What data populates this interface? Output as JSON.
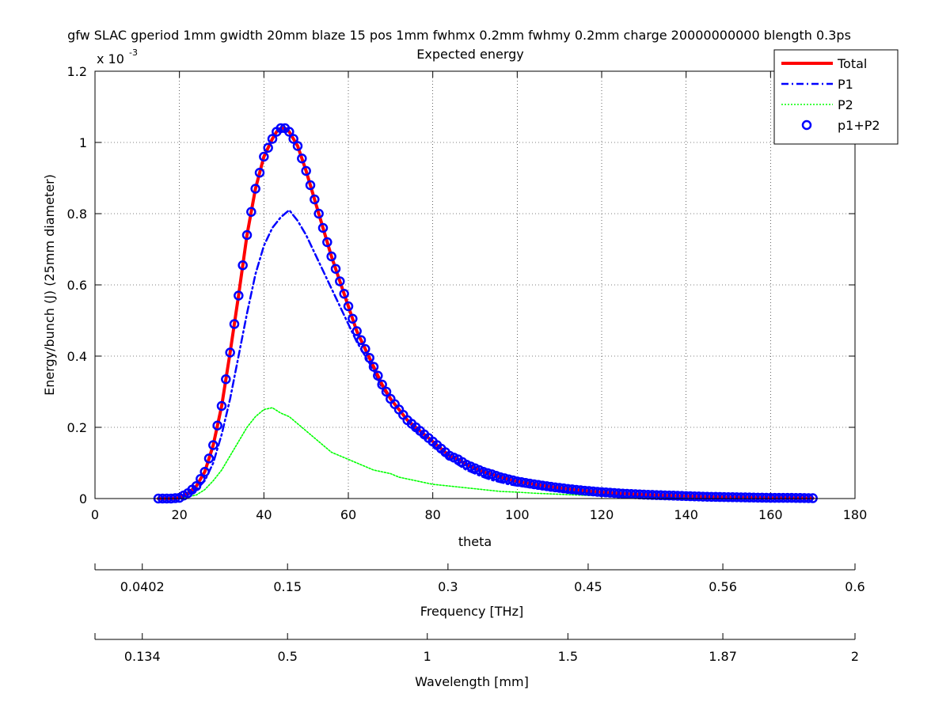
{
  "chart_data": {
    "type": "line",
    "title": "gfw SLAC gperiod 1mm gwidth 20mm blaze 15 pos 1mm fwhmx 0.2mm fwhmy 0.2mm charge 20000000000 blength 0.3ps",
    "subtitle": "Expected energy",
    "xlabel": "theta",
    "ylabel": "Energy/bunch (J) (25mm diameter)",
    "y_exponent_label": "x 10",
    "y_exponent_power": "-3",
    "xlim": [
      0,
      180
    ],
    "ylim": [
      0,
      0.0012
    ],
    "x_ticks": [
      "0",
      "20",
      "40",
      "60",
      "80",
      "100",
      "120",
      "140",
      "160",
      "180"
    ],
    "x_tick_values": [
      0,
      20,
      40,
      60,
      80,
      100,
      120,
      140,
      160,
      180
    ],
    "y_ticks": [
      "0",
      "0.2",
      "0.4",
      "0.6",
      "0.8",
      "1",
      "1.2"
    ],
    "y_tick_values": [
      0,
      0.0002,
      0.0004,
      0.0006,
      0.0008,
      0.001,
      0.0012
    ],
    "grid": true,
    "legend_position": "top-right",
    "series": [
      {
        "name": "Total",
        "style": "solid",
        "color": "#ff0000",
        "x": [
          15,
          18,
          20,
          22,
          24,
          26,
          28,
          30,
          32,
          34,
          36,
          38,
          40,
          42,
          43,
          44,
          45,
          46,
          48,
          50,
          52,
          54,
          56,
          58,
          60,
          62,
          64,
          66,
          68,
          70,
          72,
          74,
          76,
          78,
          80,
          82,
          84,
          86,
          88,
          90,
          92,
          94,
          96,
          98,
          100,
          104,
          108,
          112,
          116,
          120,
          125,
          130,
          135,
          140,
          145,
          150,
          155,
          160,
          165,
          170
        ],
        "y": [
          0,
          0,
          2e-06,
          1.5e-05,
          3.5e-05,
          7.5e-05,
          0.00015,
          0.00026,
          0.00041,
          0.00057,
          0.00074,
          0.00087,
          0.00096,
          0.00101,
          0.00103,
          0.00104,
          0.00104,
          0.00103,
          0.00099,
          0.00092,
          0.00084,
          0.00076,
          0.00068,
          0.00061,
          0.00054,
          0.00047,
          0.00042,
          0.00037,
          0.00032,
          0.00028,
          0.00025,
          0.00022,
          0.0002,
          0.00018,
          0.00016,
          0.00014,
          0.00012,
          0.00011,
          9.5e-05,
          8.5e-05,
          7.5e-05,
          6.8e-05,
          6e-05,
          5.4e-05,
          4.8e-05,
          4e-05,
          3.3e-05,
          2.7e-05,
          2.2e-05,
          1.8e-05,
          1.4e-05,
          1.1e-05,
          9e-06,
          7e-06,
          5e-06,
          4e-06,
          3e-06,
          2e-06,
          2e-06,
          1e-06
        ]
      },
      {
        "name": "P1",
        "style": "dashdot",
        "color": "#0000ff",
        "x": [
          15,
          18,
          20,
          22,
          24,
          26,
          28,
          30,
          32,
          34,
          36,
          38,
          40,
          42,
          44,
          45,
          46,
          48,
          50,
          52,
          54,
          56,
          58,
          60,
          62,
          64,
          66,
          68,
          70,
          72,
          74,
          76,
          78,
          80,
          82,
          84,
          86,
          88,
          90,
          92,
          94,
          96,
          98,
          100,
          104,
          108,
          112,
          116,
          120,
          125,
          130,
          135,
          140,
          145,
          150,
          155,
          160,
          165,
          170
        ],
        "y": [
          0,
          0,
          1e-06,
          1e-05,
          2.5e-05,
          5e-05,
          0.0001,
          0.00018,
          0.00028,
          0.0004,
          0.00052,
          0.00063,
          0.00071,
          0.00076,
          0.00079,
          0.0008,
          0.00081,
          0.00078,
          0.00074,
          0.00069,
          0.00064,
          0.00059,
          0.00054,
          0.00049,
          0.00044,
          0.0004,
          0.00036,
          0.00031,
          0.00028,
          0.00025,
          0.00022,
          0.00019,
          0.00017,
          0.00015,
          0.00013,
          0.00011,
          9.5e-05,
          8e-05,
          7e-05,
          6e-05,
          5.2e-05,
          4.6e-05,
          4e-05,
          3.6e-05,
          3e-05,
          2.5e-05,
          2e-05,
          1.6e-05,
          1.3e-05,
          1e-05,
          8e-06,
          6e-06,
          5e-06,
          4e-06,
          3e-06,
          2e-06,
          2e-06,
          1e-06,
          1e-06
        ]
      },
      {
        "name": "P2",
        "style": "dotted",
        "color": "#00ff00",
        "x": [
          15,
          18,
          20,
          22,
          24,
          26,
          28,
          30,
          32,
          34,
          36,
          38,
          40,
          42,
          44,
          46,
          48,
          50,
          52,
          54,
          56,
          58,
          60,
          62,
          64,
          66,
          68,
          70,
          72,
          74,
          76,
          78,
          80,
          84,
          88,
          92,
          96,
          100,
          104,
          108,
          112,
          116,
          120,
          125,
          130,
          135,
          140,
          145,
          150,
          155,
          160,
          165,
          170
        ],
        "y": [
          0,
          0,
          1e-06,
          5e-06,
          1e-05,
          2.5e-05,
          5e-05,
          8e-05,
          0.00012,
          0.00016,
          0.0002,
          0.00023,
          0.00025,
          0.000255,
          0.00024,
          0.00023,
          0.00021,
          0.00019,
          0.00017,
          0.00015,
          0.00013,
          0.00012,
          0.00011,
          0.0001,
          9e-05,
          8e-05,
          7.5e-05,
          7e-05,
          6e-05,
          5.5e-05,
          5e-05,
          4.5e-05,
          4e-05,
          3.5e-05,
          3e-05,
          2.5e-05,
          2e-05,
          1.8e-05,
          1.5e-05,
          1.3e-05,
          1.1e-05,
          9e-06,
          8e-06,
          6e-06,
          5e-06,
          4e-06,
          3e-06,
          3e-06,
          2e-06,
          2e-06,
          1e-06,
          1e-06,
          1e-06
        ]
      },
      {
        "name": "p1+P2",
        "style": "markers",
        "color": "#0000ff",
        "x_start": 15,
        "x_end": 170,
        "x_step": 1
      }
    ],
    "secondary_axes": [
      {
        "label": "Frequency [THz]",
        "tick_labels": [
          "0.0402",
          "0.15",
          "0.3",
          "0.45",
          "0.56",
          "0.6"
        ],
        "tick_theta": [
          11.2,
          45.6,
          83.6,
          116.8,
          148.7,
          180
        ]
      },
      {
        "label": "Wavelength [mm]",
        "tick_labels": [
          "0.134",
          "0.5",
          "1",
          "1.5",
          "1.87",
          "2"
        ],
        "tick_theta": [
          11.2,
          45.6,
          78.7,
          112,
          148.7,
          180
        ]
      }
    ]
  }
}
